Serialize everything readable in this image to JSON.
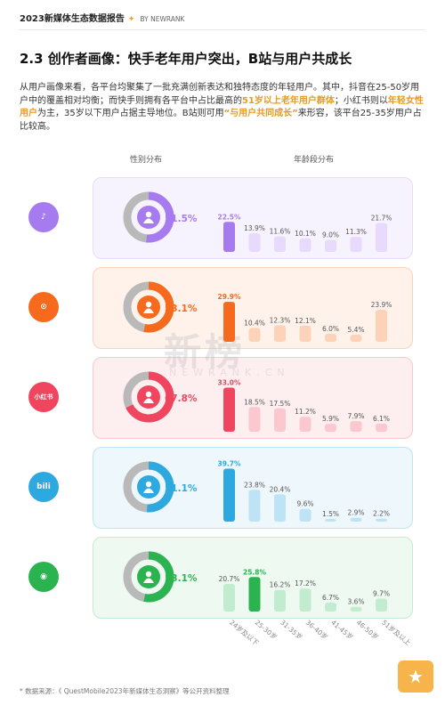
{
  "header": {
    "report_title": "2023新媒体生态数据报告",
    "by": "BY NEWRANK"
  },
  "section": {
    "title": "2.3 创作者画像：快手老年用户突出，B站与用户共成长",
    "para_parts": [
      {
        "text": "从用户画像来看，各平台均聚集了一批充满创新表达和独特态度的年轻用户。其中，抖音在25-50岁用户中的覆盖相对均衡；而快手则拥有各平台中占比最高的",
        "hl": false
      },
      {
        "text": "51岁以上老年用户群体",
        "hl": true
      },
      {
        "text": "；小红书则以",
        "hl": false
      },
      {
        "text": "年轻女性用户",
        "hl": true
      },
      {
        "text": "为主，35岁以下用户占据主导地位。B站则可用",
        "hl": false
      },
      {
        "text": "“与用户共同成长”",
        "hl": true
      },
      {
        "text": "来形容，该平台25-35岁用户占比较高。",
        "hl": false
      }
    ]
  },
  "labels": {
    "gender": "性别分布",
    "age": "年龄段分布"
  },
  "watermark": {
    "cn": "新榜",
    "en": "NEWRANK.CN"
  },
  "source": "* 数据来源：《 QuestMobile2023年新媒体生态洞察》等公开资料整理",
  "icons": {
    "favorite": "star-icon"
  },
  "chart_data": {
    "type": "bar",
    "categories": [
      "24岁及以下",
      "25-30岁",
      "31-35岁",
      "36-40岁",
      "41-45岁",
      "46-50岁",
      "51岁及以上"
    ],
    "platforms": [
      {
        "id": "douyin",
        "icon": "douyin-logo",
        "female_pct": 51.5,
        "female_label": "51.5%",
        "color": "#a77bf0",
        "light": "#e8dafc",
        "bg": "#f7f3fe",
        "values": [
          22.5,
          13.9,
          11.6,
          10.1,
          9.0,
          11.3,
          21.7
        ],
        "labels": [
          "22.5%",
          "13.9%",
          "11.6%",
          "10.1%",
          "9.0%",
          "11.3%",
          "21.7%"
        ]
      },
      {
        "id": "kuaishou",
        "icon": "kuaishou-logo",
        "female_pct": 53.1,
        "female_label": "53.1%",
        "color": "#f66a1d",
        "light": "#fcd3b9",
        "bg": "#fef2eb",
        "values": [
          29.9,
          10.4,
          12.3,
          12.1,
          6.0,
          5.4,
          23.9
        ],
        "labels": [
          "29.9%",
          "10.4%",
          "12.3%",
          "12.1%",
          "6.0%",
          "5.4%",
          "23.9%"
        ]
      },
      {
        "id": "xiaohongshu",
        "icon": "xiaohongshu-logo",
        "female_pct": 67.8,
        "female_label": "67.8%",
        "color": "#f0455f",
        "light": "#fbc8d0",
        "bg": "#fdeef0",
        "values": [
          33.0,
          18.5,
          17.5,
          11.2,
          5.9,
          7.9,
          6.1
        ],
        "labels": [
          "33.0%",
          "18.5%",
          "17.5%",
          "11.2%",
          "5.9%",
          "7.9%",
          "6.1%"
        ]
      },
      {
        "id": "bilibili",
        "icon": "bilibili-logo",
        "female_pct": 51.1,
        "female_label": "51.1%",
        "color": "#2ea9e0",
        "light": "#bde3f5",
        "bg": "#eef7fc",
        "values": [
          39.7,
          23.8,
          20.4,
          9.6,
          1.5,
          2.9,
          2.2
        ],
        "labels": [
          "39.7%",
          "23.8%",
          "20.4%",
          "9.6%",
          "1.5%",
          "2.9%",
          "2.2%"
        ]
      },
      {
        "id": "wechat",
        "icon": "wechat-logo",
        "female_pct": 53.1,
        "female_label": "53.1%",
        "color": "#2bb34f",
        "light": "#c2ecd0",
        "bg": "#eef9f1",
        "values": [
          20.7,
          25.8,
          16.2,
          17.2,
          6.7,
          3.6,
          9.7
        ],
        "labels": [
          "20.7%",
          "25.8%",
          "16.2%",
          "17.2%",
          "6.7%",
          "3.6%",
          "9.7%"
        ]
      }
    ]
  }
}
